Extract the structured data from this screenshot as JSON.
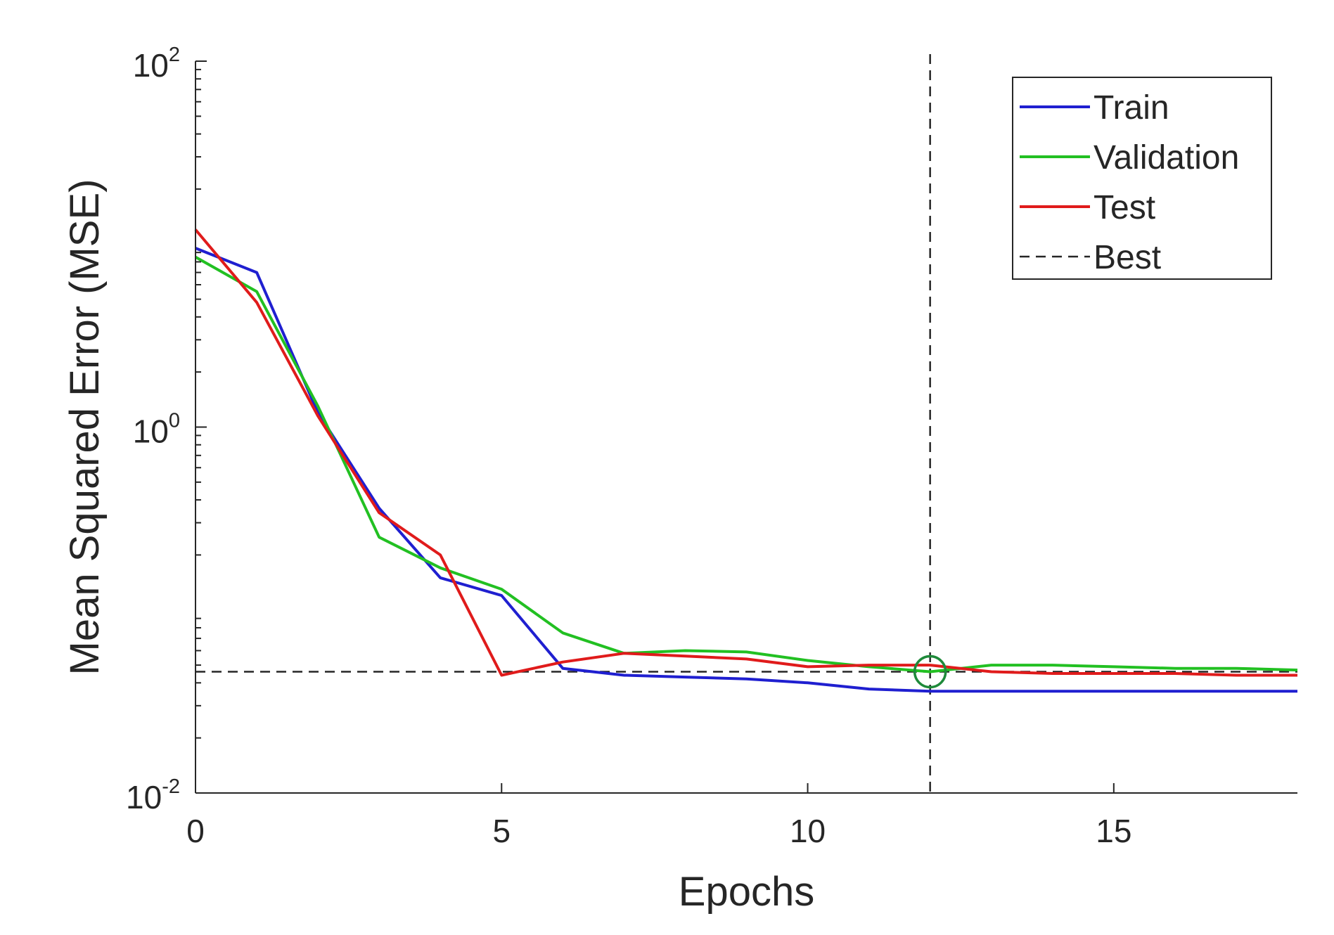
{
  "chart_data": {
    "type": "line",
    "title": "",
    "xlabel": "Epochs",
    "ylabel": "Mean Squared Error (MSE)",
    "xlim": [
      0,
      18
    ],
    "ylim": [
      0.01,
      100
    ],
    "yscale": "log",
    "grid": false,
    "x_ticks": [
      {
        "value": 0,
        "label": "0"
      },
      {
        "value": 5,
        "label": "5"
      },
      {
        "value": 10,
        "label": "10"
      },
      {
        "value": 15,
        "label": "15"
      }
    ],
    "y_ticks": [
      {
        "value": 0.01,
        "base": "10",
        "exp": "-2"
      },
      {
        "value": 1,
        "base": "10",
        "exp": "0"
      },
      {
        "value": 100,
        "base": "10",
        "exp": "2"
      }
    ],
    "series": [
      {
        "name": "Train",
        "color": "#1f1fd0",
        "x": [
          0,
          1,
          2,
          3,
          4,
          5,
          6,
          7,
          8,
          9,
          10,
          11,
          12,
          13,
          14,
          15,
          16,
          17,
          18
        ],
        "values": [
          9.5,
          7.0,
          1.2,
          0.36,
          0.15,
          0.12,
          0.048,
          0.044,
          0.043,
          0.042,
          0.04,
          0.037,
          0.036,
          0.036,
          0.036,
          0.036,
          0.036,
          0.036,
          0.036
        ]
      },
      {
        "name": "Validation",
        "color": "#22c022",
        "x": [
          0,
          1,
          2,
          3,
          4,
          5,
          6,
          7,
          8,
          9,
          10,
          11,
          12,
          13,
          14,
          15,
          16,
          17,
          18
        ],
        "values": [
          8.5,
          5.5,
          1.3,
          0.25,
          0.17,
          0.13,
          0.075,
          0.058,
          0.06,
          0.059,
          0.053,
          0.049,
          0.046,
          0.05,
          0.05,
          0.049,
          0.048,
          0.048,
          0.047
        ]
      },
      {
        "name": "Test",
        "color": "#e01b1b",
        "x": [
          0,
          1,
          2,
          3,
          4,
          5,
          6,
          7,
          8,
          9,
          10,
          11,
          12,
          13,
          14,
          15,
          16,
          17,
          18
        ],
        "values": [
          12.0,
          4.8,
          1.15,
          0.34,
          0.2,
          0.044,
          0.052,
          0.058,
          0.056,
          0.054,
          0.049,
          0.05,
          0.05,
          0.046,
          0.045,
          0.045,
          0.045,
          0.044,
          0.044
        ]
      }
    ],
    "best": {
      "label": "Best",
      "epoch": 12,
      "value": 0.046,
      "color": "#262626",
      "marker_color": "#1e8a3a"
    },
    "legend": {
      "position": "top-right",
      "entries": [
        "Train",
        "Validation",
        "Test",
        "Best"
      ]
    }
  }
}
